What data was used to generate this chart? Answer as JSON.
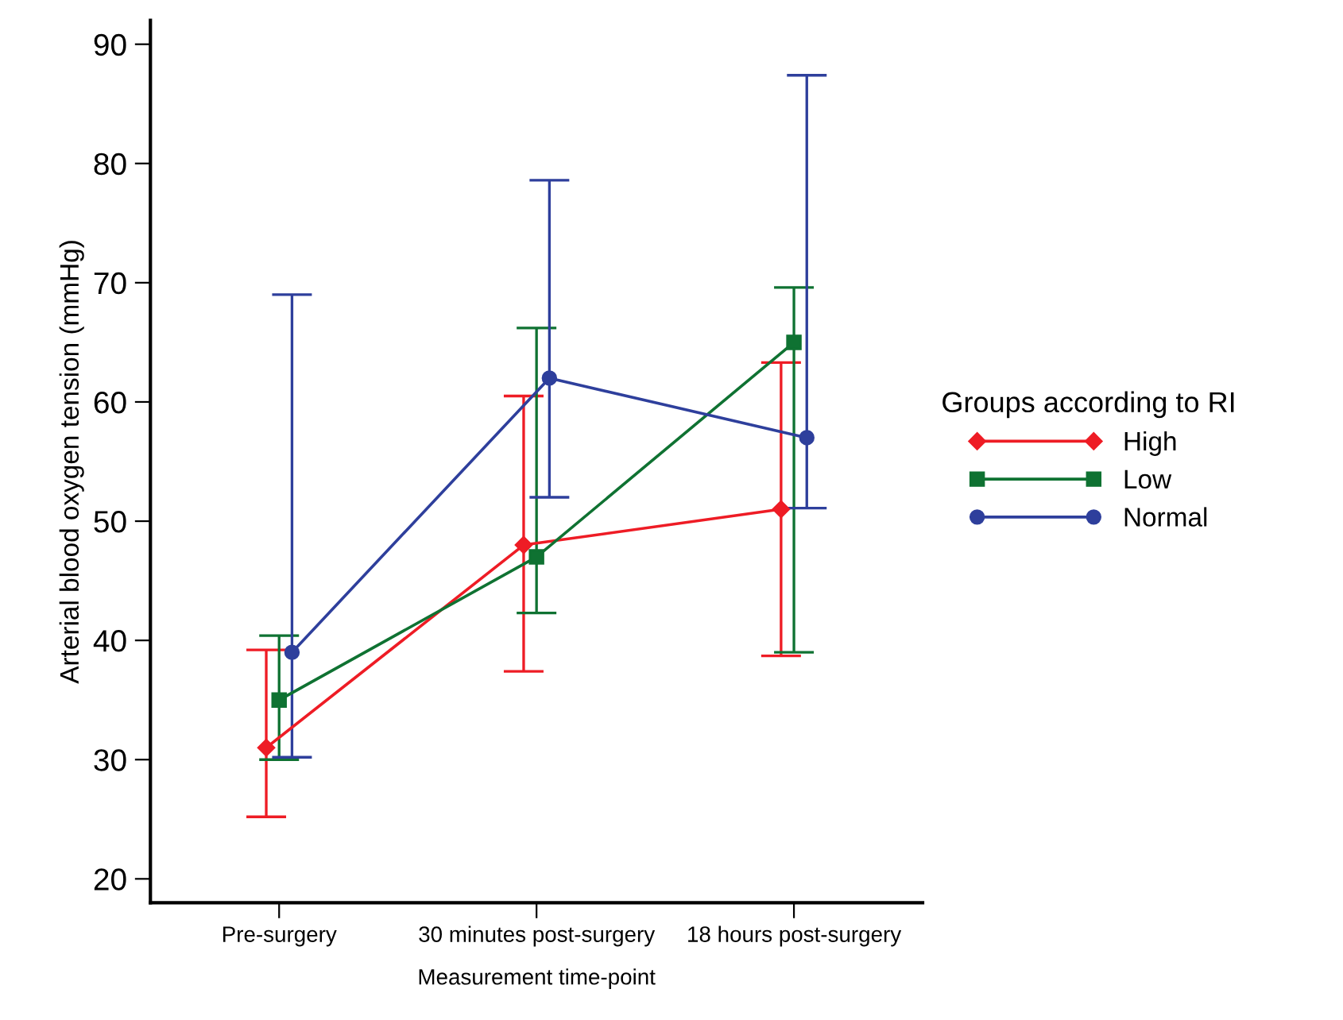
{
  "chart_data": {
    "type": "line",
    "xlabel": "Measurement time-point",
    "ylabel": "Arterial blood oxygen tension (mmHg)",
    "legend_title": "Groups according to RI",
    "legend": "right",
    "categories": [
      "Pre-surgery",
      "30 minutes post-surgery",
      "18 hours post-surgery"
    ],
    "ylim": [
      18,
      92
    ],
    "yticks": [
      20,
      30,
      40,
      50,
      60,
      70,
      80,
      90
    ],
    "grid": false,
    "series": [
      {
        "name": "High",
        "color": "#ee1c25",
        "marker": "diamond",
        "values": [
          31,
          48,
          51
        ],
        "errors": [
          [
            25.2,
            39.2
          ],
          [
            37.4,
            60.5
          ],
          [
            38.7,
            63.3
          ]
        ]
      },
      {
        "name": "Low",
        "color": "#0f7232",
        "marker": "square",
        "values": [
          35,
          47,
          65
        ],
        "errors": [
          [
            30.0,
            40.4
          ],
          [
            42.3,
            66.2
          ],
          [
            39.0,
            69.6
          ]
        ]
      },
      {
        "name": "Normal",
        "color": "#2e3f9c",
        "marker": "circle",
        "values": [
          39,
          62,
          57
        ],
        "errors": [
          [
            30.2,
            69.0
          ],
          [
            52.0,
            78.6
          ],
          [
            51.1,
            87.4
          ]
        ]
      }
    ]
  }
}
